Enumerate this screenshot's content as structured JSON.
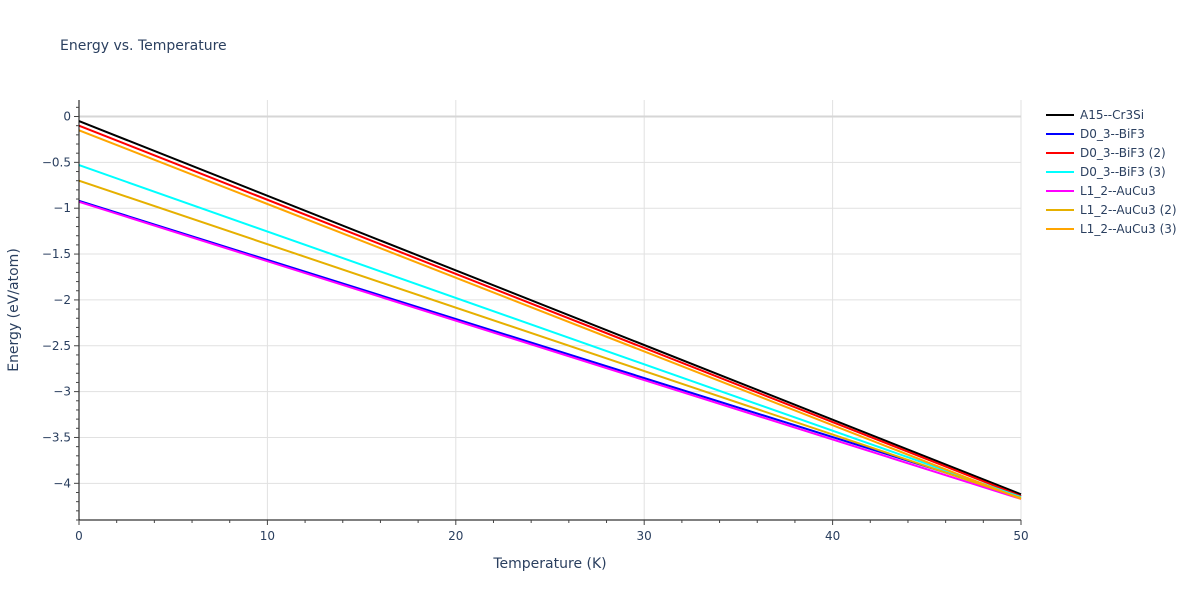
{
  "chart_data": {
    "type": "line",
    "title": "Energy vs. Temperature",
    "xlabel": "Temperature (K)",
    "ylabel": "Energy (eV/atom)",
    "xlim": [
      0,
      50
    ],
    "ylim": [
      -4.4,
      0.18
    ],
    "x_ticks": [
      0,
      10,
      20,
      30,
      40,
      50
    ],
    "x_tick_labels": [
      "0",
      "10",
      "20",
      "30",
      "40",
      "50"
    ],
    "y_ticks": [
      0,
      -0.5,
      -1,
      -1.5,
      -2,
      -2.5,
      -3,
      -3.5,
      -4
    ],
    "y_tick_labels": [
      "0",
      "−0.5",
      "−1",
      "−1.5",
      "−2",
      "−2.5",
      "−3",
      "−3.5",
      "−4"
    ],
    "grid": true,
    "legend_position": "top-right",
    "series": [
      {
        "name": "A15--Cr3Si",
        "color": "#000000",
        "x": [
          0,
          50
        ],
        "y": [
          -0.05,
          -4.12
        ]
      },
      {
        "name": "D0_3--BiF3",
        "color": "#0000ff",
        "x": [
          0,
          50
        ],
        "y": [
          -0.92,
          -4.14
        ]
      },
      {
        "name": "D0_3--BiF3 (2)",
        "color": "#ff0000",
        "x": [
          0,
          50
        ],
        "y": [
          -0.1,
          -4.14
        ]
      },
      {
        "name": "D0_3--BiF3 (3)",
        "color": "#00ffff",
        "x": [
          0,
          50
        ],
        "y": [
          -0.53,
          -4.15
        ]
      },
      {
        "name": "L1_2--AuCu3",
        "color": "#ff00ff",
        "x": [
          0,
          50
        ],
        "y": [
          -0.93,
          -4.17
        ]
      },
      {
        "name": "L1_2--AuCu3 (2)",
        "color": "#e6b000",
        "x": [
          0,
          50
        ],
        "y": [
          -0.7,
          -4.16
        ]
      },
      {
        "name": "L1_2--AuCu3 (3)",
        "color": "#ffa500",
        "x": [
          0,
          50
        ],
        "y": [
          -0.15,
          -4.17
        ]
      }
    ]
  }
}
